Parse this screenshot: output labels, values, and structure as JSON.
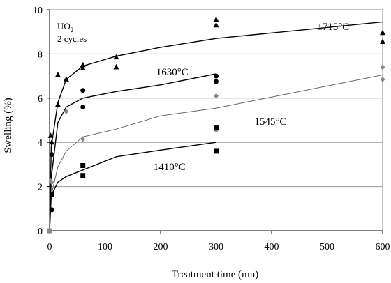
{
  "chart_data": {
    "type": "scatter",
    "xlabel": "Treatment time (mn)",
    "ylabel": "Swelling (%)",
    "xlim": [
      0,
      600
    ],
    "ylim": [
      0,
      10
    ],
    "xticks": [
      0,
      100,
      200,
      300,
      400,
      500,
      600
    ],
    "yticks": [
      0,
      2,
      4,
      6,
      8,
      10
    ],
    "grid": "horizontal",
    "annotations": {
      "material": "UO",
      "material_subscript": "2",
      "cycles": "2 cycles"
    },
    "series": [
      {
        "name": "1715°C",
        "marker": "triangle",
        "color": "#000000",
        "points": [
          [
            0,
            0
          ],
          [
            2,
            4.3
          ],
          [
            4,
            4.0
          ],
          [
            15,
            7.05
          ],
          [
            15,
            5.7
          ],
          [
            30,
            6.85
          ],
          [
            60,
            7.5
          ],
          [
            60,
            7.35
          ],
          [
            120,
            7.85
          ],
          [
            120,
            7.4
          ],
          [
            300,
            9.55
          ],
          [
            300,
            9.3
          ],
          [
            600,
            8.95
          ],
          [
            600,
            8.55
          ]
        ],
        "fit": [
          [
            0,
            0
          ],
          [
            3,
            3.8
          ],
          [
            15,
            5.8
          ],
          [
            30,
            6.85
          ],
          [
            60,
            7.45
          ],
          [
            120,
            7.9
          ],
          [
            200,
            8.3
          ],
          [
            300,
            8.7
          ],
          [
            400,
            8.95
          ],
          [
            500,
            9.2
          ],
          [
            600,
            9.45
          ]
        ]
      },
      {
        "name": "1630°C",
        "marker": "circle",
        "color": "#000000",
        "points": [
          [
            0,
            0
          ],
          [
            4,
            3.45
          ],
          [
            4,
            0.95
          ],
          [
            60,
            6.35
          ],
          [
            60,
            5.6
          ],
          [
            300,
            7.0
          ],
          [
            300,
            6.75
          ]
        ],
        "fit": [
          [
            0,
            0
          ],
          [
            3,
            2.4
          ],
          [
            15,
            4.9
          ],
          [
            30,
            5.6
          ],
          [
            60,
            6.0
          ],
          [
            120,
            6.3
          ],
          [
            200,
            6.6
          ],
          [
            300,
            7.1
          ]
        ]
      },
      {
        "name": "1545°C",
        "marker": "diamond",
        "color": "#888888",
        "points": [
          [
            0,
            0
          ],
          [
            2,
            2.25
          ],
          [
            4,
            2.2
          ],
          [
            30,
            5.4
          ],
          [
            60,
            4.15
          ],
          [
            300,
            6.1
          ],
          [
            300,
            4.55
          ],
          [
            600,
            7.4
          ],
          [
            600,
            6.85
          ]
        ],
        "fit": [
          [
            0,
            0
          ],
          [
            3,
            1.6
          ],
          [
            15,
            2.9
          ],
          [
            30,
            3.6
          ],
          [
            60,
            4.25
          ],
          [
            120,
            4.6
          ],
          [
            200,
            5.2
          ],
          [
            300,
            5.55
          ],
          [
            400,
            6.05
          ],
          [
            500,
            6.55
          ],
          [
            600,
            7.05
          ]
        ]
      },
      {
        "name": "1410°C",
        "marker": "square",
        "color": "#000000",
        "points": [
          [
            0,
            0
          ],
          [
            4,
            1.65
          ],
          [
            60,
            2.95
          ],
          [
            60,
            2.5
          ],
          [
            300,
            4.65
          ],
          [
            300,
            3.6
          ]
        ],
        "fit": [
          [
            0,
            0
          ],
          [
            3,
            1.6
          ],
          [
            15,
            2.2
          ],
          [
            30,
            2.45
          ],
          [
            60,
            2.75
          ],
          [
            120,
            3.35
          ],
          [
            200,
            3.65
          ],
          [
            300,
            4.0
          ]
        ]
      }
    ],
    "series_labels": [
      {
        "name": "1715°C",
        "x": 540,
        "y": 9.25
      },
      {
        "name": "1630°C",
        "x": 250,
        "y": 7.2
      },
      {
        "name": "1545°C",
        "x": 427,
        "y": 4.95
      },
      {
        "name": "1410°C",
        "x": 245,
        "y": 2.9
      }
    ]
  }
}
